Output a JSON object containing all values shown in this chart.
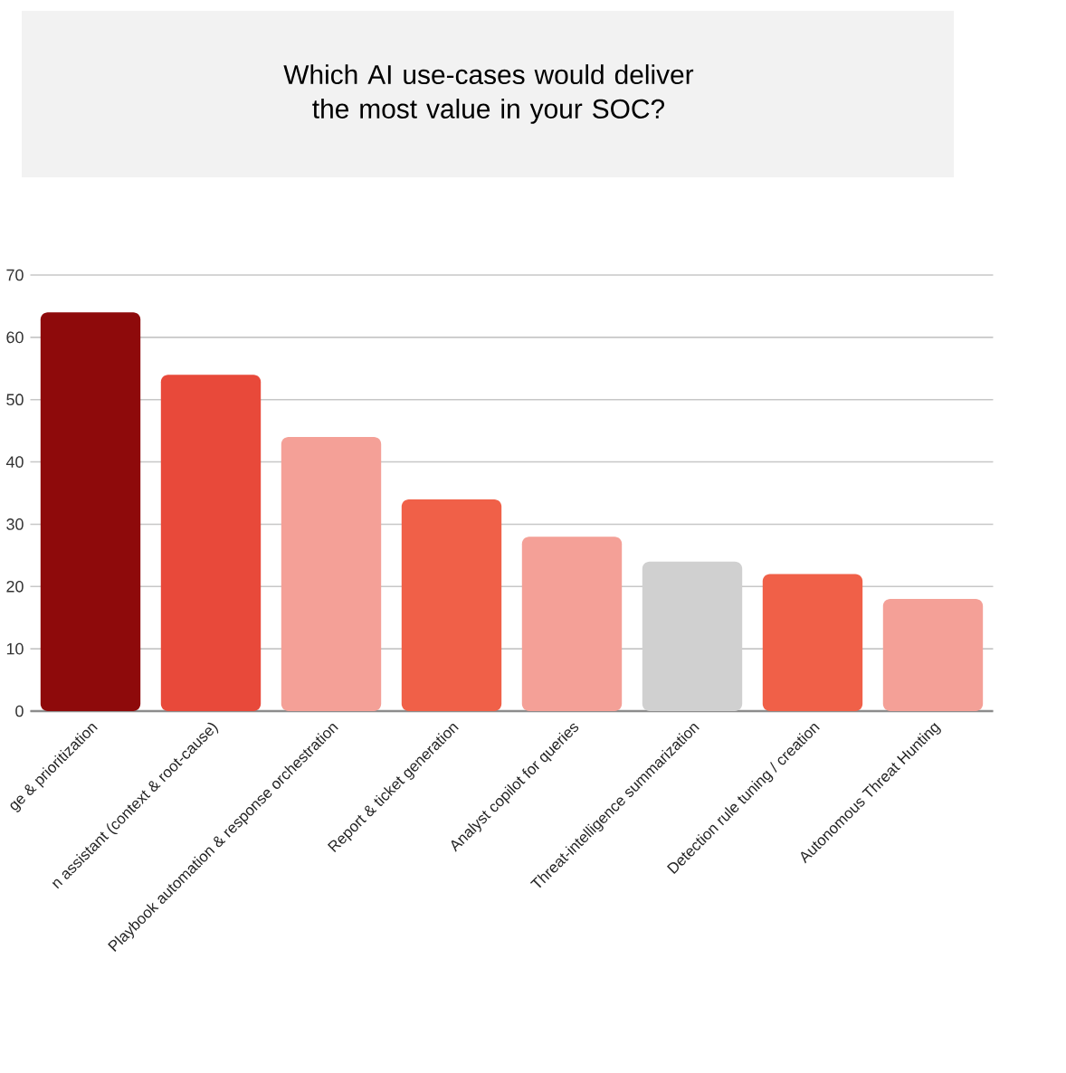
{
  "chart_data": {
    "type": "bar",
    "title": "Which AI use-cases would deliver the most value in your SOC?",
    "categories": [
      "ge & prioritization",
      "n assistant (context & root-cause)",
      "Playbook automation & response orchestration",
      "Report & ticket generation",
      "Analyst copilot for queries",
      "Threat-intelligence summarization",
      "Detection rule tuning / creation",
      "Autonomous Threat Hunting"
    ],
    "values": [
      64,
      54,
      44,
      34,
      28,
      24,
      22,
      18
    ],
    "colors": [
      "#8e0a0b",
      "#e8493a",
      "#f4a097",
      "#f06048",
      "#f4a097",
      "#d0d0d0",
      "#f06048",
      "#f4a097"
    ],
    "ylim": [
      0,
      70
    ],
    "yticks": [
      0,
      10,
      20,
      30,
      40,
      50,
      60,
      70
    ],
    "grid": "y"
  }
}
